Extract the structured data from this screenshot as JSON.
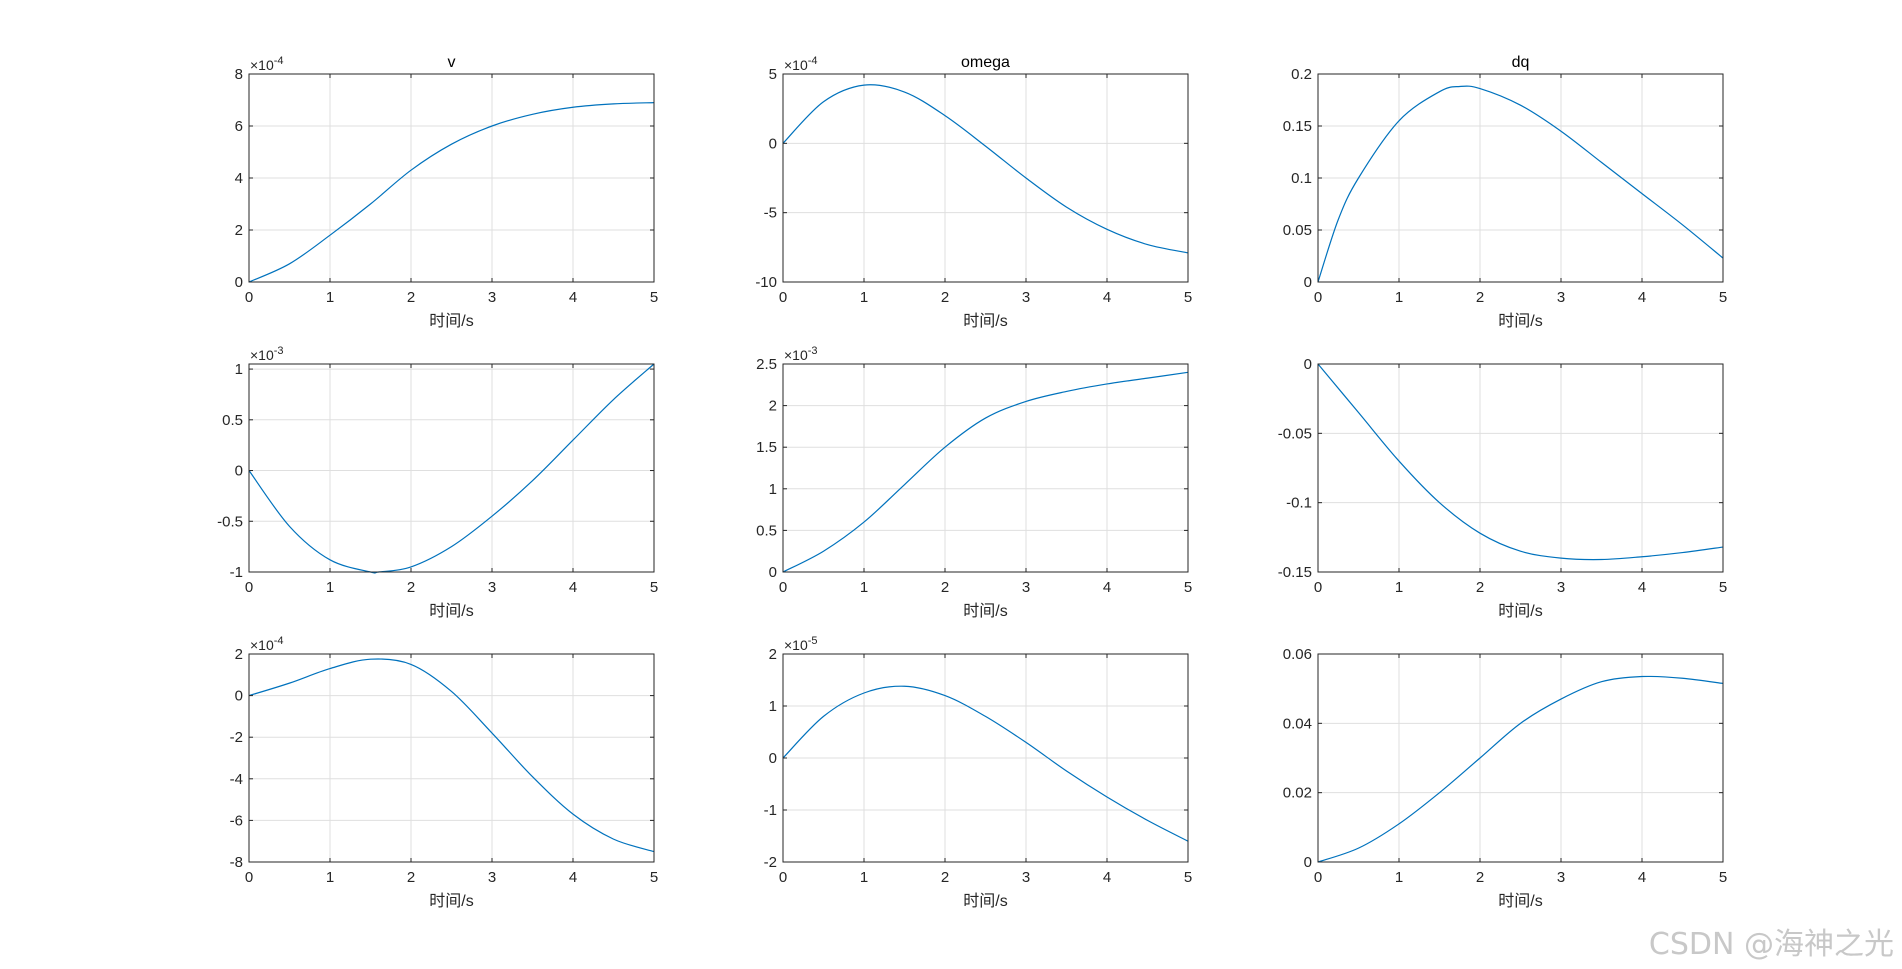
{
  "watermark": "CSDN @海神之光",
  "colors": {
    "line": "#0072BD",
    "axes": "#262626",
    "grid": "#dfdfdf",
    "background": "#ffffff"
  },
  "chart_data": [
    {
      "type": "line",
      "title": "v",
      "xlabel": "时间/s",
      "ylabel": "",
      "xlim": [
        0,
        5
      ],
      "ylim": [
        0,
        8
      ],
      "exponent": "-4",
      "xticks": [
        "0",
        "1",
        "2",
        "3",
        "4",
        "5"
      ],
      "yticks": [
        {
          "v": 0,
          "t": "0"
        },
        {
          "v": 2,
          "t": "2"
        },
        {
          "v": 4,
          "t": "4"
        },
        {
          "v": 6,
          "t": "6"
        },
        {
          "v": 8,
          "t": "8"
        }
      ],
      "grid": true,
      "series": [
        {
          "x": [
            0,
            0.5,
            1,
            1.5,
            2,
            2.5,
            3,
            3.5,
            4,
            4.5,
            5
          ],
          "y": [
            0,
            0.7,
            1.8,
            3.0,
            4.3,
            5.3,
            6.0,
            6.45,
            6.72,
            6.85,
            6.9
          ]
        }
      ]
    },
    {
      "type": "line",
      "title": "omega",
      "xlabel": "时间/s",
      "ylabel": "",
      "xlim": [
        0,
        5
      ],
      "ylim": [
        -10,
        5
      ],
      "exponent": "-4",
      "xticks": [
        "0",
        "1",
        "2",
        "3",
        "4",
        "5"
      ],
      "yticks": [
        {
          "v": -10,
          "t": "-10"
        },
        {
          "v": -5,
          "t": "-5"
        },
        {
          "v": 0,
          "t": "0"
        },
        {
          "v": 5,
          "t": "5"
        }
      ],
      "grid": true,
      "series": [
        {
          "x": [
            0,
            0.5,
            1,
            1.5,
            2,
            2.5,
            3,
            3.5,
            4,
            4.5,
            5
          ],
          "y": [
            0,
            3.0,
            4.2,
            3.7,
            2.0,
            -0.2,
            -2.5,
            -4.6,
            -6.2,
            -7.3,
            -7.9
          ]
        }
      ]
    },
    {
      "type": "line",
      "title": "dq",
      "xlabel": "时间/s",
      "ylabel": "",
      "xlim": [
        0,
        5
      ],
      "ylim": [
        0,
        0.2
      ],
      "exponent": "",
      "xticks": [
        "0",
        "1",
        "2",
        "3",
        "4",
        "5"
      ],
      "yticks": [
        {
          "v": 0,
          "t": "0"
        },
        {
          "v": 0.05,
          "t": "0.05"
        },
        {
          "v": 0.1,
          "t": "0.1"
        },
        {
          "v": 0.15,
          "t": "0.15"
        },
        {
          "v": 0.2,
          "t": "0.2"
        }
      ],
      "grid": true,
      "series": [
        {
          "x": [
            0,
            0.25,
            0.5,
            1,
            1.5,
            1.75,
            2,
            2.5,
            3,
            3.5,
            4,
            4.5,
            5
          ],
          "y": [
            0,
            0.06,
            0.1,
            0.155,
            0.183,
            0.188,
            0.186,
            0.17,
            0.145,
            0.115,
            0.085,
            0.055,
            0.023
          ]
        }
      ]
    },
    {
      "type": "line",
      "title": "",
      "xlabel": "时间/s",
      "ylabel": "",
      "xlim": [
        0,
        5
      ],
      "ylim": [
        -1,
        1.05
      ],
      "exponent": "-3",
      "xticks": [
        "0",
        "1",
        "2",
        "3",
        "4",
        "5"
      ],
      "yticks": [
        {
          "v": -1,
          "t": "-1"
        },
        {
          "v": -0.5,
          "t": "-0.5"
        },
        {
          "v": 0,
          "t": "0"
        },
        {
          "v": 0.5,
          "t": "0.5"
        },
        {
          "v": 1,
          "t": "1"
        }
      ],
      "grid": true,
      "series": [
        {
          "x": [
            0,
            0.5,
            1,
            1.5,
            1.6,
            2,
            2.5,
            3,
            3.5,
            4,
            4.5,
            5
          ],
          "y": [
            0,
            -0.55,
            -0.88,
            -1.0,
            -1.0,
            -0.95,
            -0.75,
            -0.45,
            -0.1,
            0.3,
            0.7,
            1.05
          ]
        }
      ]
    },
    {
      "type": "line",
      "title": "",
      "xlabel": "时间/s",
      "ylabel": "",
      "xlim": [
        0,
        5
      ],
      "ylim": [
        0,
        2.5
      ],
      "exponent": "-3",
      "xticks": [
        "0",
        "1",
        "2",
        "3",
        "4",
        "5"
      ],
      "yticks": [
        {
          "v": 0,
          "t": "0"
        },
        {
          "v": 0.5,
          "t": "0.5"
        },
        {
          "v": 1,
          "t": "1"
        },
        {
          "v": 1.5,
          "t": "1.5"
        },
        {
          "v": 2,
          "t": "2"
        },
        {
          "v": 2.5,
          "t": "2.5"
        }
      ],
      "grid": true,
      "series": [
        {
          "x": [
            0,
            0.5,
            1,
            1.5,
            2,
            2.5,
            3,
            3.5,
            4,
            4.5,
            5
          ],
          "y": [
            0,
            0.25,
            0.6,
            1.05,
            1.5,
            1.85,
            2.05,
            2.17,
            2.26,
            2.33,
            2.4
          ]
        }
      ]
    },
    {
      "type": "line",
      "title": "",
      "xlabel": "时间/s",
      "ylabel": "",
      "xlim": [
        0,
        5
      ],
      "ylim": [
        -0.15,
        0
      ],
      "exponent": "",
      "xticks": [
        "0",
        "1",
        "2",
        "3",
        "4",
        "5"
      ],
      "yticks": [
        {
          "v": -0.15,
          "t": "-0.15"
        },
        {
          "v": -0.1,
          "t": "-0.1"
        },
        {
          "v": -0.05,
          "t": "-0.05"
        },
        {
          "v": 0,
          "t": "0"
        }
      ],
      "grid": true,
      "series": [
        {
          "x": [
            0,
            0.5,
            1,
            1.5,
            2,
            2.5,
            3,
            3.5,
            4,
            4.5,
            5
          ],
          "y": [
            0,
            -0.035,
            -0.07,
            -0.1,
            -0.122,
            -0.135,
            -0.14,
            -0.141,
            -0.139,
            -0.136,
            -0.132
          ]
        }
      ]
    },
    {
      "type": "line",
      "title": "",
      "xlabel": "时间/s",
      "ylabel": "",
      "xlim": [
        0,
        5
      ],
      "ylim": [
        -8,
        2
      ],
      "exponent": "-4",
      "xticks": [
        "0",
        "1",
        "2",
        "3",
        "4",
        "5"
      ],
      "yticks": [
        {
          "v": -8,
          "t": "-8"
        },
        {
          "v": -6,
          "t": "-6"
        },
        {
          "v": -4,
          "t": "-4"
        },
        {
          "v": -2,
          "t": "-2"
        },
        {
          "v": 0,
          "t": "0"
        },
        {
          "v": 2,
          "t": "2"
        }
      ],
      "grid": true,
      "series": [
        {
          "x": [
            0,
            0.5,
            1,
            1.5,
            2,
            2.5,
            3,
            3.5,
            4,
            4.5,
            5
          ],
          "y": [
            0,
            0.6,
            1.3,
            1.75,
            1.5,
            0.2,
            -1.8,
            -3.9,
            -5.7,
            -6.9,
            -7.5
          ]
        }
      ]
    },
    {
      "type": "line",
      "title": "",
      "xlabel": "时间/s",
      "ylabel": "",
      "xlim": [
        0,
        5
      ],
      "ylim": [
        -2,
        2
      ],
      "exponent": "-5",
      "xticks": [
        "0",
        "1",
        "2",
        "3",
        "4",
        "5"
      ],
      "yticks": [
        {
          "v": -2,
          "t": "-2"
        },
        {
          "v": -1,
          "t": "-1"
        },
        {
          "v": 0,
          "t": "0"
        },
        {
          "v": 1,
          "t": "1"
        },
        {
          "v": 2,
          "t": "2"
        }
      ],
      "grid": true,
      "series": [
        {
          "x": [
            0,
            0.5,
            1,
            1.5,
            2,
            2.5,
            3,
            3.5,
            4,
            4.5,
            5
          ],
          "y": [
            0,
            0.8,
            1.25,
            1.38,
            1.2,
            0.8,
            0.3,
            -0.25,
            -0.75,
            -1.2,
            -1.6
          ]
        }
      ]
    },
    {
      "type": "line",
      "title": "",
      "xlabel": "时间/s",
      "ylabel": "",
      "xlim": [
        0,
        5
      ],
      "ylim": [
        0,
        0.06
      ],
      "exponent": "",
      "xticks": [
        "0",
        "1",
        "2",
        "3",
        "4",
        "5"
      ],
      "yticks": [
        {
          "v": 0,
          "t": "0"
        },
        {
          "v": 0.02,
          "t": "0.02"
        },
        {
          "v": 0.04,
          "t": "0.04"
        },
        {
          "v": 0.06,
          "t": "0.06"
        }
      ],
      "grid": true,
      "series": [
        {
          "x": [
            0,
            0.5,
            1,
            1.5,
            2,
            2.5,
            3,
            3.5,
            4,
            4.5,
            5
          ],
          "y": [
            0,
            0.004,
            0.011,
            0.02,
            0.03,
            0.04,
            0.047,
            0.052,
            0.0535,
            0.053,
            0.0515
          ]
        }
      ]
    }
  ]
}
